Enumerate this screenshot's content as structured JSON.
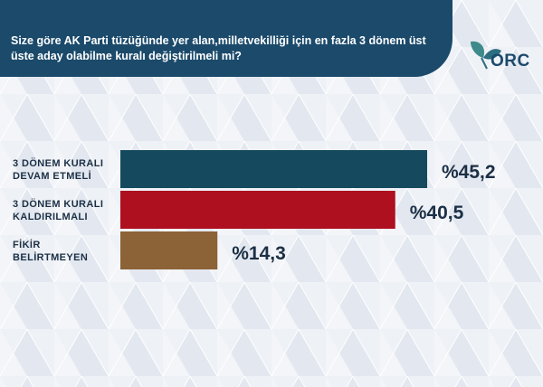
{
  "question": "Size göre AK Parti tüzüğünde yer alan,milletvekilliği için en fazla 3 dönem üst üste aday olabilme kuralı değiştirilmeli mi?",
  "brand": {
    "name": "ORC",
    "icon": "leaf-logo-icon",
    "color": "#1b4a6b"
  },
  "chart_data": {
    "type": "bar",
    "orientation": "horizontal",
    "categories": [
      "3 DÖNEM KURALI DEVAM ETMELİ",
      "3 DÖNEM KURALI KALDIRILMALI",
      "FİKİR BELİRTMEYEN"
    ],
    "category_lines": [
      [
        "3 DÖNEM KURALI",
        "DEVAM ETMELİ"
      ],
      [
        "3 DÖNEM KURALI",
        "KALDIRILMALI"
      ],
      [
        "FİKİR",
        "BELİRTMEYEN"
      ]
    ],
    "values": [
      45.2,
      40.5,
      14.3
    ],
    "value_labels": [
      "%45,2",
      "%40,5",
      "%14,3"
    ],
    "colors": [
      "#154a5e",
      "#ae1020",
      "#8c6237"
    ],
    "xlim": [
      0,
      45.2
    ]
  }
}
